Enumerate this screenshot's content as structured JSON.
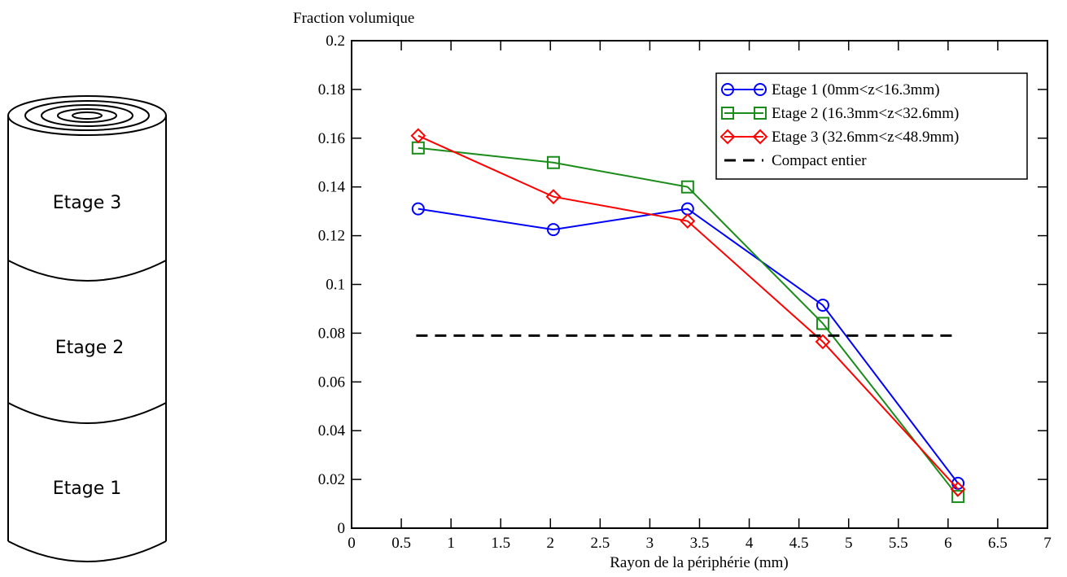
{
  "diagram": {
    "labels": [
      "Etage 3",
      "Etage 2",
      "Etage 1"
    ]
  },
  "chart_data": {
    "type": "line",
    "ylabel": "Fraction volumique",
    "xlabel": "Rayon de la périphérie (mm)",
    "xlim": [
      0,
      7
    ],
    "ylim": [
      0,
      0.2
    ],
    "xticks": [
      0,
      0.5,
      1,
      1.5,
      2,
      2.5,
      3,
      3.5,
      4,
      4.5,
      5,
      5.5,
      6,
      6.5,
      7
    ],
    "yticks": [
      0,
      0.02,
      0.04,
      0.06,
      0.08,
      0.1,
      0.12,
      0.14,
      0.16,
      0.18,
      0.2
    ],
    "legend": "upper right",
    "series": [
      {
        "name": "Etage 1 (0mm<z<16.3mm)",
        "color": "#0000ff",
        "marker": "circle",
        "linestyle": "solid",
        "x": [
          0.67,
          2.03,
          3.38,
          4.74,
          6.1
        ],
        "values": [
          0.131,
          0.1225,
          0.131,
          0.0915,
          0.0184
        ]
      },
      {
        "name": "Etage 2 (16.3mm<z<32.6mm)",
        "color": "#1a8c1a",
        "marker": "square",
        "linestyle": "solid",
        "x": [
          0.67,
          2.03,
          3.38,
          4.74,
          6.1
        ],
        "values": [
          0.156,
          0.15,
          0.14,
          0.084,
          0.013
        ]
      },
      {
        "name": "Etage 3 (32.6mm<z<48.9mm)",
        "color": "#ff0000",
        "marker": "diamond",
        "linestyle": "solid",
        "x": [
          0.67,
          2.03,
          3.38,
          4.74,
          6.1
        ],
        "values": [
          0.161,
          0.136,
          0.126,
          0.0765,
          0.016
        ]
      },
      {
        "name": "Compact entier",
        "color": "#000000",
        "linestyle": "dashed",
        "x": [
          0.65,
          6.06
        ],
        "values": [
          0.079,
          0.079
        ]
      }
    ]
  }
}
